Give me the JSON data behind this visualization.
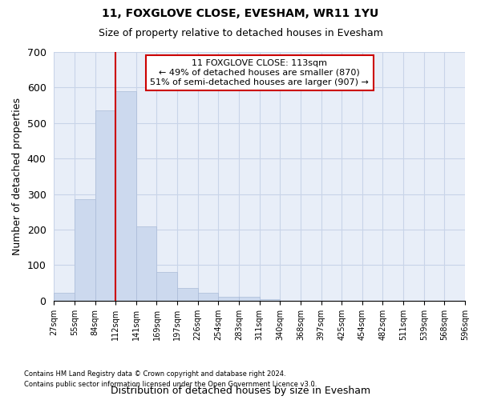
{
  "title1": "11, FOXGLOVE CLOSE, EVESHAM, WR11 1YU",
  "title2": "Size of property relative to detached houses in Evesham",
  "xlabel": "Distribution of detached houses by size in Evesham",
  "ylabel": "Number of detached properties",
  "footnote1": "Contains HM Land Registry data © Crown copyright and database right 2024.",
  "footnote2": "Contains public sector information licensed under the Open Government Licence v3.0.",
  "bar_color": "#ccd9ee",
  "bar_edge_color": "#aabbd8",
  "grid_color": "#c8d4e8",
  "background_color": "#e8eef8",
  "annotation_box_color": "#cc0000",
  "property_line_color": "#cc0000",
  "bin_labels": [
    "27sqm",
    "55sqm",
    "84sqm",
    "112sqm",
    "141sqm",
    "169sqm",
    "197sqm",
    "226sqm",
    "254sqm",
    "283sqm",
    "311sqm",
    "340sqm",
    "368sqm",
    "397sqm",
    "425sqm",
    "454sqm",
    "482sqm",
    "511sqm",
    "539sqm",
    "568sqm",
    "596sqm"
  ],
  "bar_heights": [
    22,
    285,
    535,
    590,
    210,
    80,
    35,
    22,
    10,
    10,
    5,
    0,
    0,
    0,
    0,
    0,
    0,
    0,
    0,
    0
  ],
  "annotation_line1": "11 FOXGLOVE CLOSE: 113sqm",
  "annotation_line2": "← 49% of detached houses are smaller (870)",
  "annotation_line3": "51% of semi-detached houses are larger (907) →",
  "ylim": [
    0,
    700
  ],
  "yticks": [
    0,
    100,
    200,
    300,
    400,
    500,
    600,
    700
  ],
  "property_line_bin": 3,
  "n_bins": 20
}
